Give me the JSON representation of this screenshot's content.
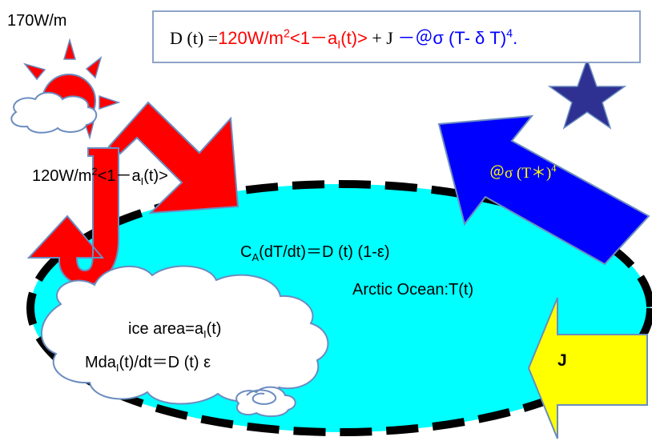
{
  "sun_flux": "170W/m",
  "equation": {
    "lhs": "D (t) =",
    "insolation": "120W/m",
    "insolation_exp": "2",
    "insolation_mid": "<1－a",
    "insolation_sub": "I",
    "insolation_end": "(t)>",
    "plus_j": " + J ",
    "outgoing": "－＠σ (T- δ T)",
    "outgoing_exp": "4",
    "period": ".",
    "colors": {
      "black": "#000000",
      "red": "#ff0000",
      "blue": "#0000ff"
    }
  },
  "insolation_label": {
    "base": "120W/m",
    "exp": "2",
    "mid": "<1－a",
    "sub": "I",
    "end": "(t)>"
  },
  "outgoing_label": {
    "text": "＠σ (T＊)",
    "exp": "4"
  },
  "ocean": {
    "heat_eq_c": "C",
    "heat_eq_sub": "A",
    "heat_eq_rest": "(dT/dt)＝D (t) (1-ε)",
    "name": "Arctic Ocean:T(t)"
  },
  "ice": {
    "area_text": "ice area=a",
    "area_sub": "I",
    "area_end": "(t)",
    "growth_text": "Mda",
    "growth_sub": "I",
    "growth_end": "(t)/dt＝D (t) ε"
  },
  "heat_transport": {
    "label": "J"
  },
  "palette": {
    "ocean": "#00ffff",
    "sun": "#ff0000",
    "sun_ray": "#ff0000",
    "arrow_red": "#ff0000",
    "arrow_blue": "#0000ff",
    "star": "#2e3192",
    "yellow": "#ffff00",
    "outline": "#7a9cc6",
    "outgoing_text": "#ffff00"
  }
}
